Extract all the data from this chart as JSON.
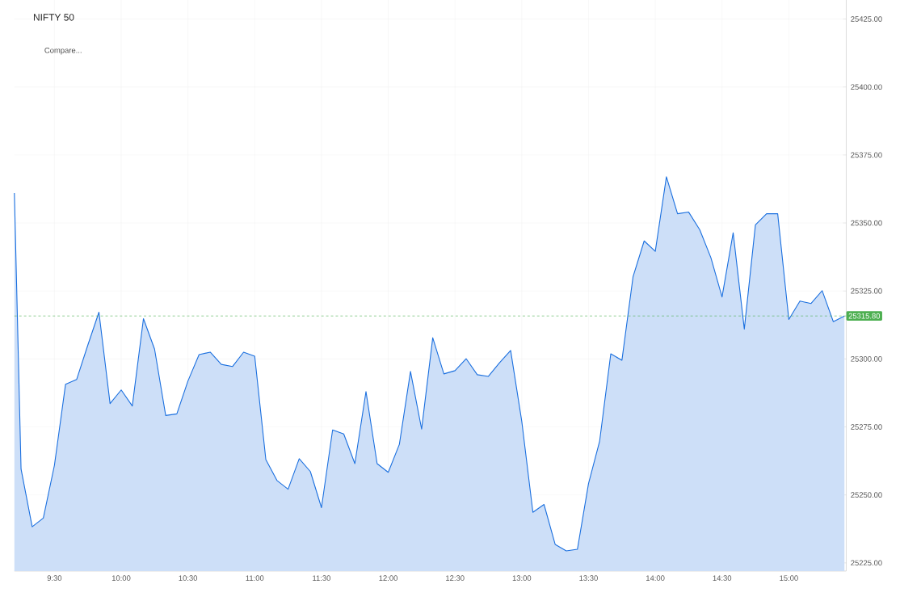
{
  "chart_data": {
    "type": "area",
    "title": "NIFTY 50",
    "annotations": [
      "Compare..."
    ],
    "x": [
      9.2,
      9.25,
      9.3333,
      9.4167,
      9.5,
      9.5833,
      9.6667,
      9.75,
      9.8333,
      9.9167,
      10,
      10.0833,
      10.1667,
      10.25,
      10.3333,
      10.4167,
      10.5,
      10.5833,
      10.6667,
      10.75,
      10.8333,
      10.9167,
      11,
      11.0833,
      11.1667,
      11.25,
      11.3333,
      11.4167,
      11.5,
      11.5833,
      11.6667,
      11.75,
      11.8333,
      11.9167,
      12,
      12.0833,
      12.1667,
      12.25,
      12.3333,
      12.4167,
      12.5,
      12.5833,
      12.6667,
      12.75,
      12.8333,
      12.9167,
      13,
      13.0833,
      13.1667,
      13.25,
      13.3333,
      13.4167,
      13.5,
      13.5833,
      13.6667,
      13.75,
      13.8333,
      13.9167,
      14,
      14.0833,
      14.1667,
      14.25,
      14.3333,
      14.4167,
      14.5,
      14.5833,
      14.6667,
      14.75,
      14.8333,
      14.9167,
      15,
      15.0833,
      15.1667,
      15.25,
      15.3333,
      15.4167
    ],
    "series": [
      {
        "color": "#1a6fdf",
        "values": [
          25361,
          25259.5,
          25238.3,
          25241.5,
          25260.9,
          25290.7,
          25292.5,
          25305.1,
          25317.2,
          25283.6,
          25288.6,
          25282.7,
          25314.8,
          25303.6,
          25279.2,
          25279.8,
          25291.9,
          25301.6,
          25302.5,
          25298,
          25297.2,
          25302.5,
          25301,
          25263,
          25255.3,
          25252.1,
          25263.3,
          25258.6,
          25245.3,
          25273.9,
          25272.4,
          25261.5,
          25288,
          25261.5,
          25258.3,
          25268.6,
          25295.4,
          25274.2,
          25307.8,
          25294.5,
          25295.7,
          25300.1,
          25294.2,
          25293.6,
          25298.6,
          25303.1,
          25277.1,
          25243.6,
          25246.5,
          25231.8,
          25229.4,
          25230,
          25254.2,
          25269.8,
          25301.9,
          25299.5,
          25330.2,
          25343.4,
          25339.6,
          25367,
          25353.4,
          25354,
          25347.5,
          25337.2,
          25322.8,
          25346.4,
          25311,
          25349.3,
          25353.4,
          25353.4,
          25314.5,
          25321.3,
          25320.4,
          25325.1,
          25313.7,
          25315.8
        ]
      }
    ],
    "xlim": [
      9.2,
      15.43
    ],
    "ylim": [
      25222,
      25432
    ],
    "xticks": [
      {
        "value": 9.5,
        "label": "9:30"
      },
      {
        "value": 10,
        "label": "10:00"
      },
      {
        "value": 10.5,
        "label": "10:30"
      },
      {
        "value": 11,
        "label": "11:00"
      },
      {
        "value": 11.5,
        "label": "11:30"
      },
      {
        "value": 12,
        "label": "12:00"
      },
      {
        "value": 12.5,
        "label": "12:30"
      },
      {
        "value": 13,
        "label": "13:00"
      },
      {
        "value": 13.5,
        "label": "13:30"
      },
      {
        "value": 14,
        "label": "14:00"
      },
      {
        "value": 14.5,
        "label": "14:30"
      },
      {
        "value": 15,
        "label": "15:00"
      }
    ],
    "yticks": [
      {
        "value": 25225,
        "label": "25225.00"
      },
      {
        "value": 25250,
        "label": "25250.00"
      },
      {
        "value": 25275,
        "label": "25275.00"
      },
      {
        "value": 25300,
        "label": "25300.00"
      },
      {
        "value": 25325,
        "label": "25325.00"
      },
      {
        "value": 25350,
        "label": "25350.00"
      },
      {
        "value": 25375,
        "label": "25375.00"
      },
      {
        "value": 25400,
        "label": "25400.00"
      },
      {
        "value": 25425,
        "label": "25425.00"
      }
    ],
    "ref_lines": [
      {
        "axis": "y",
        "value": 25315.8,
        "label": "25315.80",
        "color": "#4caf50",
        "line_style": "dashed"
      }
    ],
    "grid": true
  }
}
